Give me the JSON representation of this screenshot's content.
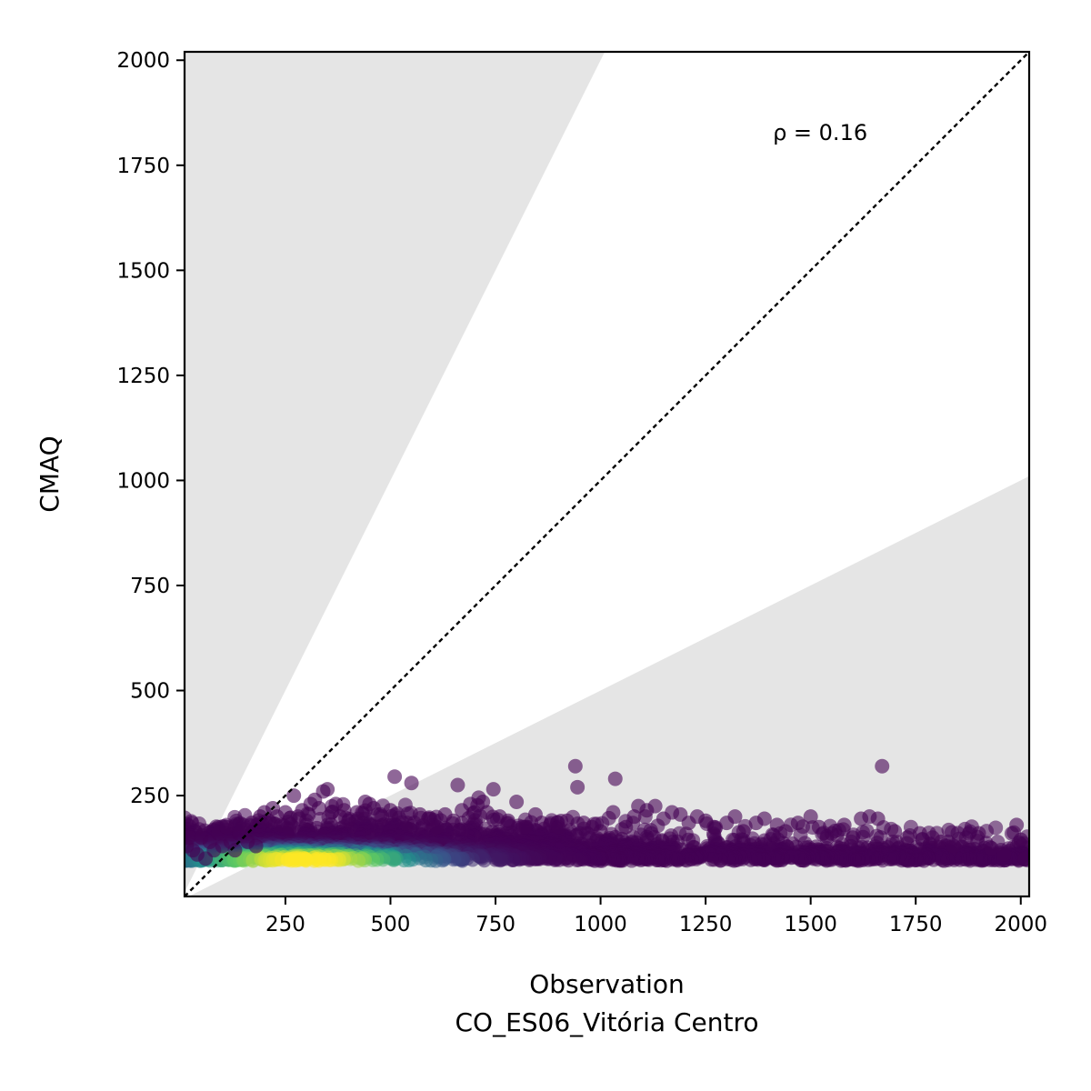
{
  "chart_data": {
    "type": "scatter",
    "xlabel": "Observation",
    "xlabel_sub": "CO_ES06_Vitória Centro",
    "ylabel": "CMAQ",
    "xlim": [
      10,
      2020
    ],
    "ylim": [
      10,
      2020
    ],
    "xticks": [
      250,
      500,
      750,
      1000,
      1250,
      1500,
      1750,
      2000
    ],
    "yticks": [
      250,
      500,
      750,
      1000,
      1250,
      1500,
      1750,
      2000
    ],
    "annotation": "ρ = 0.16",
    "annotation_pos": [
      1410,
      1810
    ],
    "identity_line": true,
    "shaded_bands": [
      "y > 2x",
      "y < 0.5x"
    ],
    "colors": {
      "band": "#e5e5e5",
      "point_low_density": "#440154",
      "point_high_density": "#fde725",
      "identity": "#000000"
    },
    "colormap": "viridis",
    "density_colored": true,
    "grid": false,
    "points": [
      [
        15,
        130
      ],
      [
        20,
        150
      ],
      [
        30,
        120
      ],
      [
        40,
        110
      ],
      [
        50,
        150
      ],
      [
        60,
        100
      ],
      [
        70,
        140
      ],
      [
        80,
        120
      ],
      [
        90,
        160
      ],
      [
        100,
        130
      ],
      [
        110,
        175
      ],
      [
        120,
        140
      ],
      [
        130,
        120
      ],
      [
        140,
        160
      ],
      [
        150,
        180
      ],
      [
        160,
        140
      ],
      [
        170,
        185
      ],
      [
        180,
        130
      ],
      [
        190,
        200
      ],
      [
        200,
        210
      ],
      [
        210,
        190
      ],
      [
        220,
        220
      ],
      [
        230,
        200
      ],
      [
        240,
        180
      ],
      [
        250,
        210
      ],
      [
        260,
        170
      ],
      [
        270,
        250
      ],
      [
        280,
        200
      ],
      [
        290,
        215
      ],
      [
        300,
        190
      ],
      [
        310,
        230
      ],
      [
        320,
        240
      ],
      [
        330,
        220
      ],
      [
        340,
        260
      ],
      [
        350,
        265
      ],
      [
        360,
        210
      ],
      [
        370,
        230
      ],
      [
        380,
        200
      ],
      [
        390,
        215
      ],
      [
        400,
        190
      ],
      [
        420,
        210
      ],
      [
        440,
        235
      ],
      [
        450,
        230
      ],
      [
        460,
        220
      ],
      [
        480,
        200
      ],
      [
        500,
        215
      ],
      [
        510,
        295
      ],
      [
        540,
        185
      ],
      [
        550,
        280
      ],
      [
        570,
        205
      ],
      [
        590,
        195
      ],
      [
        610,
        175
      ],
      [
        630,
        205
      ],
      [
        650,
        190
      ],
      [
        660,
        275
      ],
      [
        670,
        215
      ],
      [
        690,
        230
      ],
      [
        700,
        210
      ],
      [
        710,
        245
      ],
      [
        720,
        235
      ],
      [
        730,
        210
      ],
      [
        745,
        265
      ],
      [
        760,
        200
      ],
      [
        780,
        190
      ],
      [
        800,
        235
      ],
      [
        820,
        175
      ],
      [
        845,
        205
      ],
      [
        860,
        185
      ],
      [
        880,
        180
      ],
      [
        900,
        175
      ],
      [
        920,
        190
      ],
      [
        940,
        320
      ],
      [
        945,
        270
      ],
      [
        960,
        185
      ],
      [
        980,
        175
      ],
      [
        1000,
        165
      ],
      [
        1030,
        210
      ],
      [
        1035,
        290
      ],
      [
        1060,
        175
      ],
      [
        1080,
        200
      ],
      [
        1090,
        225
      ],
      [
        1110,
        215
      ],
      [
        1130,
        225
      ],
      [
        1150,
        195
      ],
      [
        1170,
        210
      ],
      [
        1190,
        205
      ],
      [
        1210,
        185
      ],
      [
        1230,
        200
      ],
      [
        1250,
        190
      ],
      [
        1270,
        175
      ],
      [
        1300,
        185
      ],
      [
        1320,
        200
      ],
      [
        1340,
        165
      ],
      [
        1370,
        185
      ],
      [
        1390,
        195
      ],
      [
        1420,
        180
      ],
      [
        1440,
        165
      ],
      [
        1470,
        185
      ],
      [
        1500,
        200
      ],
      [
        1520,
        175
      ],
      [
        1550,
        160
      ],
      [
        1580,
        180
      ],
      [
        1600,
        150
      ],
      [
        1620,
        195
      ],
      [
        1640,
        200
      ],
      [
        1660,
        195
      ],
      [
        1670,
        320
      ],
      [
        1700,
        165
      ],
      [
        1730,
        150
      ],
      [
        1760,
        160
      ],
      [
        1790,
        150
      ],
      [
        1810,
        140
      ],
      [
        1840,
        130
      ],
      [
        1870,
        150
      ],
      [
        1900,
        160
      ],
      [
        1930,
        125
      ],
      [
        1960,
        110
      ],
      [
        1990,
        180
      ],
      [
        2000,
        145
      ],
      [
        2010,
        100
      ]
    ]
  }
}
